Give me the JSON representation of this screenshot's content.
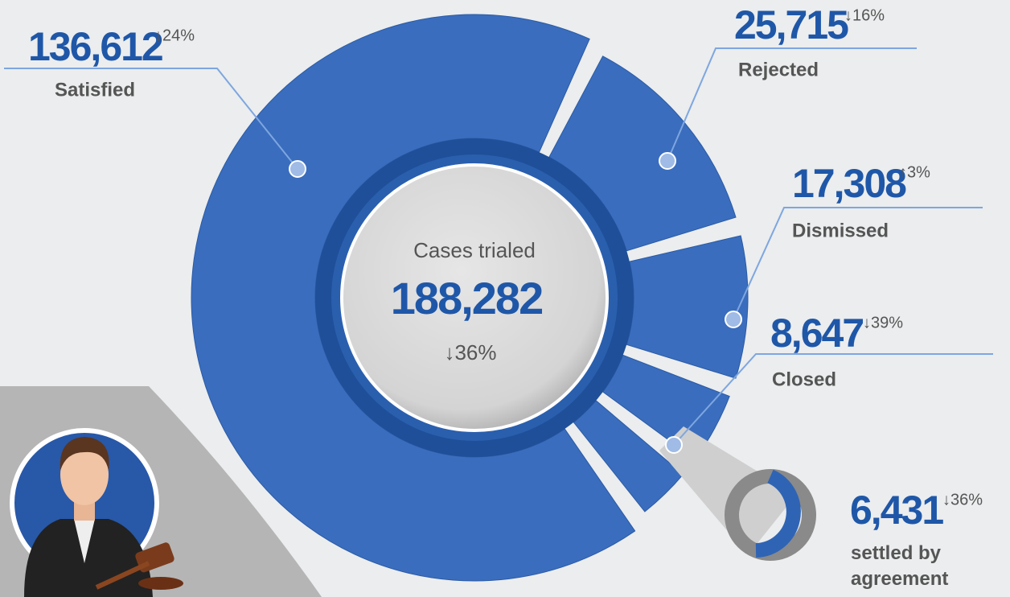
{
  "chart_data": {
    "type": "donut",
    "center_label": "Cases trialed",
    "total": 188282,
    "total_label": "188,282",
    "total_change": "↓36%",
    "categories": [
      "Rejected",
      "Dismissed",
      "Closed",
      "settled by agreement",
      "Satisfied"
    ],
    "values": [
      25715,
      17308,
      8647,
      6431,
      136612
    ],
    "value_labels": [
      "25,715",
      "17,308",
      "8,647",
      "6,431",
      "136,612"
    ],
    "changes": [
      "↓16%",
      "↑3%",
      "↓39%",
      "↓36%",
      "↓24%"
    ],
    "color": "#3a6dbd"
  }
}
